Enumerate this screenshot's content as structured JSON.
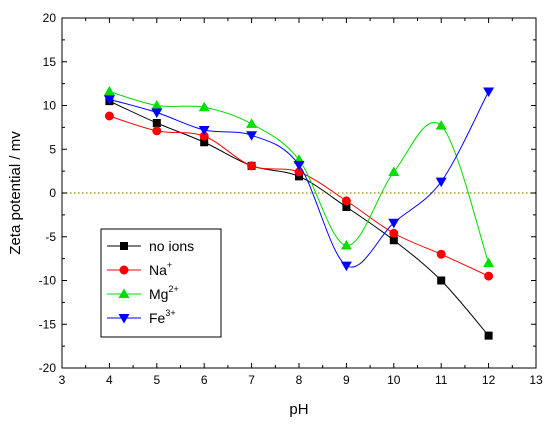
{
  "chart_data": {
    "type": "line",
    "xlabel": "pH",
    "ylabel": "Zeta potential / mv",
    "xlim": [
      3,
      13
    ],
    "ylim": [
      -20,
      20
    ],
    "xticks": [
      3,
      4,
      5,
      6,
      7,
      8,
      9,
      10,
      11,
      12,
      13
    ],
    "yticks": [
      -20,
      -15,
      -10,
      -5,
      0,
      5,
      10,
      15,
      20
    ],
    "reference_line": {
      "y": 0,
      "style": "dotted",
      "color": "#8a8a00"
    },
    "grid": false,
    "legend_position": "bottom-left",
    "series": [
      {
        "name": "no ions",
        "sup": "",
        "marker": "square",
        "color": "#000000",
        "x": [
          4,
          5,
          6,
          7,
          8,
          9,
          10,
          11,
          12
        ],
        "y": [
          10.5,
          8.0,
          5.8,
          3.1,
          1.9,
          -1.6,
          -5.4,
          -10.0,
          -16.3
        ]
      },
      {
        "name": "Na",
        "sup": "+",
        "marker": "circle",
        "color": "#ff0000",
        "x": [
          4,
          5,
          6,
          7,
          8,
          9,
          10,
          11,
          12
        ],
        "y": [
          8.8,
          7.1,
          6.5,
          3.1,
          2.4,
          -0.9,
          -4.6,
          -7.0,
          -9.5
        ]
      },
      {
        "name": "Mg",
        "sup": "2+",
        "marker": "triangle-up",
        "color": "#00dd00",
        "x": [
          4,
          5,
          6,
          7,
          8,
          9,
          10,
          11,
          12
        ],
        "y": [
          11.6,
          10.0,
          9.8,
          7.9,
          3.8,
          -6.0,
          2.4,
          7.7,
          -8.0
        ]
      },
      {
        "name": "Fe",
        "sup": "3+",
        "marker": "triangle-down",
        "color": "#0000ff",
        "x": [
          4,
          5,
          6,
          7,
          8,
          9,
          10,
          11,
          12
        ],
        "y": [
          10.7,
          9.2,
          7.2,
          6.6,
          3.2,
          -8.3,
          -3.4,
          1.3,
          11.6
        ]
      }
    ]
  }
}
